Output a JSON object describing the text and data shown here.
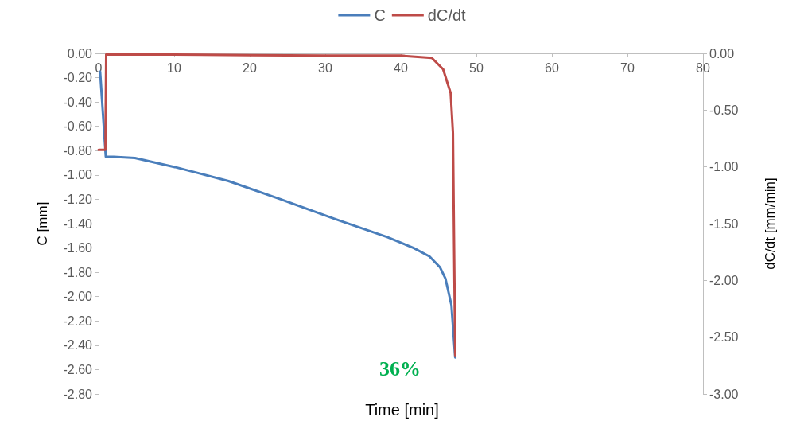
{
  "chart_data": {
    "type": "line",
    "xlabel": "Time [min]",
    "ylabel": "C [mm]",
    "y2label": "dC/dt [mm/min]",
    "legend": "top",
    "grid": false,
    "marker": "none",
    "line_style": "solid",
    "xlim": [
      0,
      80
    ],
    "xticks": [
      0,
      10,
      20,
      30,
      40,
      50,
      60,
      70,
      80
    ],
    "ylim": [
      -2.8,
      0
    ],
    "yticks": [
      {
        "value": 0,
        "label": "0.00"
      },
      {
        "value": -0.2,
        "label": "-0.20"
      },
      {
        "value": -0.4,
        "label": "-0.40"
      },
      {
        "value": -0.6,
        "label": "-0.60"
      },
      {
        "value": -0.8,
        "label": "-0.80"
      },
      {
        "value": -1,
        "label": "-1.00"
      },
      {
        "value": -1.2,
        "label": "-1.20"
      },
      {
        "value": -1.4,
        "label": "-1.40"
      },
      {
        "value": -1.6,
        "label": "-1.60"
      },
      {
        "value": -1.8,
        "label": "-1.80"
      },
      {
        "value": -2,
        "label": "-2.00"
      },
      {
        "value": -2.2,
        "label": "-2.20"
      },
      {
        "value": -2.4,
        "label": "-2.40"
      },
      {
        "value": -2.6,
        "label": "-2.60"
      },
      {
        "value": -2.8,
        "label": "-2.80"
      }
    ],
    "y2lim": [
      -3,
      0
    ],
    "y2ticks": [
      {
        "value": 0,
        "label": "0.00"
      },
      {
        "value": -0.5,
        "label": "-0.50"
      },
      {
        "value": -1,
        "label": "-1.00"
      },
      {
        "value": -1.5,
        "label": "-1.50"
      },
      {
        "value": -2,
        "label": "-2.00"
      },
      {
        "value": -2.5,
        "label": "-2.50"
      },
      {
        "value": -3,
        "label": "-3.00"
      }
    ],
    "series": [
      {
        "name": "C",
        "color": "#4a7ebb",
        "x": [
          0.2,
          0.95,
          2,
          4.8,
          10.1,
          17.2,
          24.1,
          31.2,
          38.2,
          41.7,
          43.8,
          45.2,
          45.9,
          46.7,
          47.2
        ],
        "values": [
          -0.15,
          -0.85,
          -0.85,
          -0.86,
          -0.935,
          -1.05,
          -1.2,
          -1.36,
          -1.51,
          -1.6,
          -1.67,
          -1.76,
          -1.85,
          -2.07,
          -2.5
        ]
      },
      {
        "name": "dC/dt",
        "color": "#be4b48",
        "axis": "y2",
        "x": [
          0,
          0.9,
          1,
          10,
          20,
          30,
          40,
          44.1,
          45.6,
          46.6,
          46.9,
          47.2
        ],
        "values": [
          -0.85,
          -0.85,
          -0.01,
          -0.01,
          -0.015,
          -0.02,
          -0.02,
          -0.04,
          -0.14,
          -0.35,
          -0.7,
          -2.66
        ]
      }
    ],
    "annotations": [
      "36%"
    ]
  }
}
